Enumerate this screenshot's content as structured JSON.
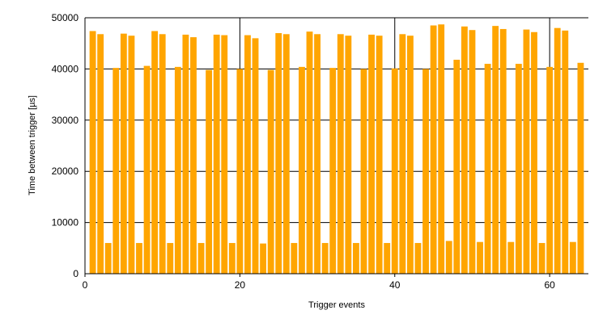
{
  "chart_data": {
    "type": "bar",
    "title": "",
    "xlabel": "Trigger events",
    "ylabel": "Time between trigger [µs]",
    "xlim": [
      0,
      65
    ],
    "ylim": [
      0,
      50000
    ],
    "xticks": [
      0,
      20,
      40,
      60
    ],
    "yticks": [
      0,
      10000,
      20000,
      30000,
      40000,
      50000
    ],
    "grid": true,
    "legend": "none",
    "bar_color": "#FFA500",
    "x": [
      1,
      2,
      3,
      4,
      5,
      6,
      7,
      8,
      9,
      10,
      11,
      12,
      13,
      14,
      15,
      16,
      17,
      18,
      19,
      20,
      21,
      22,
      23,
      24,
      25,
      26,
      27,
      28,
      29,
      30,
      31,
      32,
      33,
      34,
      35,
      36,
      37,
      38,
      39,
      40,
      41,
      42,
      43,
      44,
      45,
      46,
      47,
      48,
      49,
      50,
      51,
      52,
      53,
      54,
      55,
      56,
      57,
      58,
      59,
      60,
      61,
      62,
      63,
      64
    ],
    "values": [
      47400,
      46800,
      6000,
      40200,
      46900,
      46500,
      6000,
      40600,
      47400,
      46800,
      6000,
      40400,
      46700,
      46200,
      6000,
      39800,
      46700,
      46600,
      6000,
      40000,
      46600,
      46000,
      5900,
      39800,
      47000,
      46800,
      6000,
      40400,
      47300,
      46800,
      6000,
      40200,
      46800,
      46500,
      6000,
      40000,
      46700,
      46500,
      6000,
      40100,
      46800,
      46500,
      6000,
      40000,
      48500,
      48700,
      6400,
      41800,
      48300,
      47600,
      6200,
      41000,
      48400,
      47800,
      6200,
      41000,
      47700,
      47200,
      6000,
      40400,
      48000,
      47500,
      6200,
      41200
    ]
  }
}
